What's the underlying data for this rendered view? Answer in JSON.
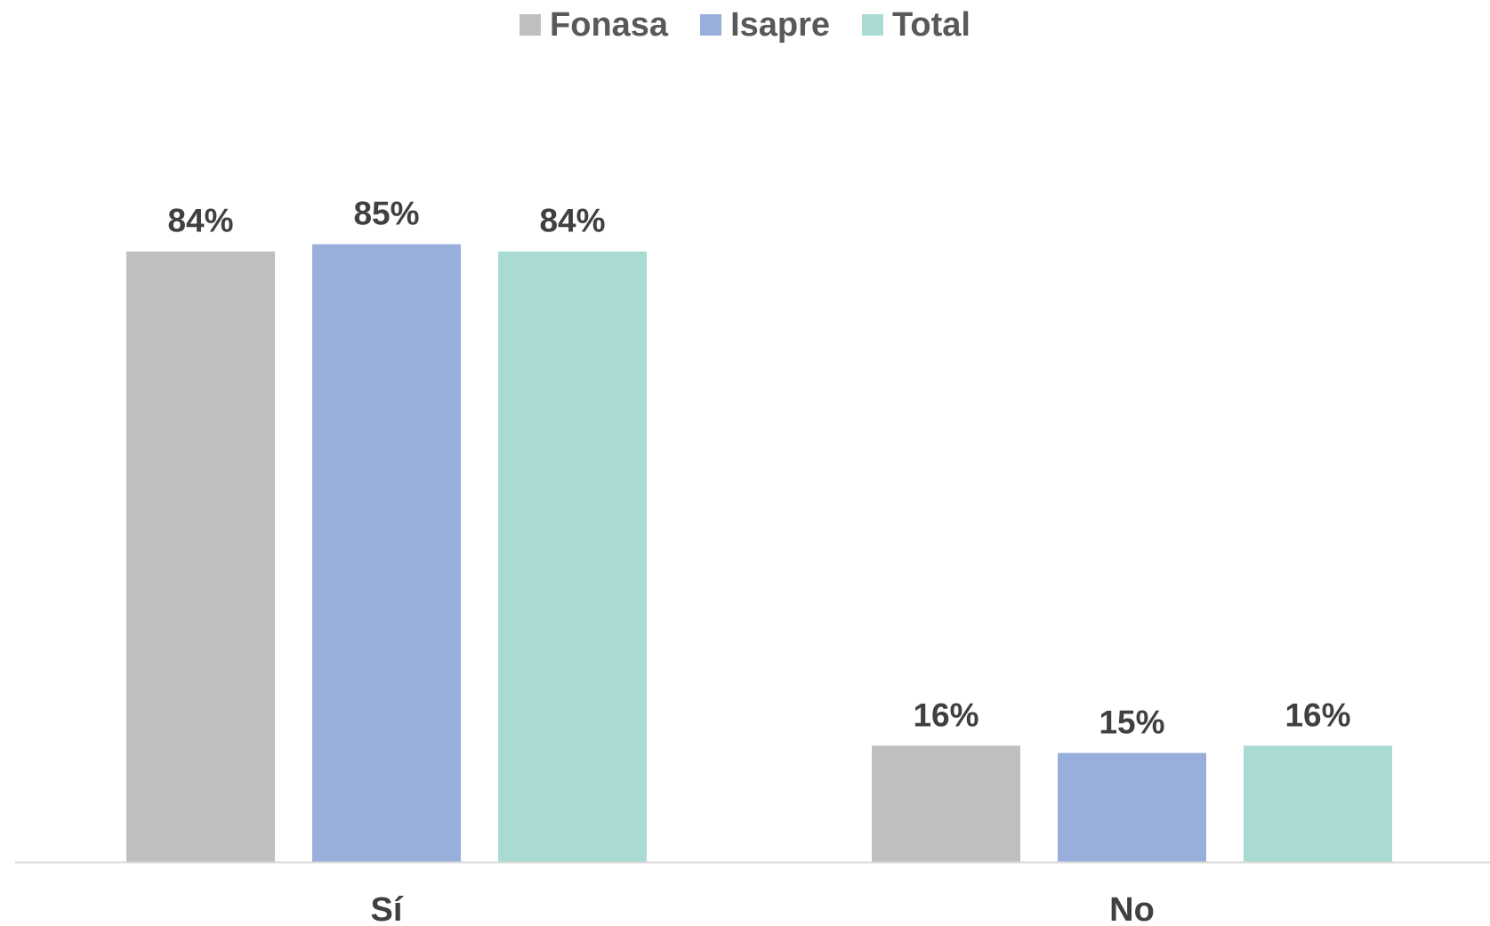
{
  "chart_data": {
    "type": "bar",
    "categories": [
      "Sí",
      "No"
    ],
    "series": [
      {
        "name": "Fonasa",
        "values": [
          84,
          16
        ],
        "color": "#bfbfbf"
      },
      {
        "name": "Isapre",
        "values": [
          85,
          15
        ],
        "color": "#98aedb"
      },
      {
        "name": "Total",
        "values": [
          84,
          16
        ],
        "color": "#a9dbd3"
      }
    ],
    "data_labels": [
      [
        "84%",
        "16%"
      ],
      [
        "85%",
        "15%"
      ],
      [
        "84%",
        "16%"
      ]
    ],
    "title": "",
    "xlabel": "",
    "ylabel": "",
    "ylim": [
      0,
      100
    ],
    "grid": false,
    "legend_position": "top-center",
    "axis_color": "#d9d9d9"
  }
}
